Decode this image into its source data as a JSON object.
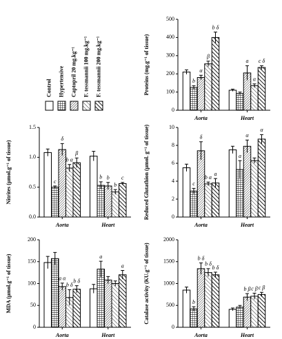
{
  "legend": [
    {
      "name": "Control",
      "pattern": "none"
    },
    {
      "name": "Hypertensive",
      "pattern": "grid"
    },
    {
      "name": "Captopril 20 mg.kg⁻¹",
      "pattern": "dense"
    },
    {
      "name": "F. tessmannii 100 mg.kg⁻¹",
      "pattern": "sparse"
    },
    {
      "name": "F. tessmannii 200 mg.kg⁻¹",
      "pattern": "thick"
    }
  ],
  "chart_data": [
    {
      "type": "bar",
      "y_label": "Proteins (mg.g⁻¹ of tissue)",
      "categories": [
        "Aorta",
        "Heart"
      ],
      "ylim": [
        0,
        500
      ],
      "yticks": [
        0,
        100,
        200,
        300,
        400,
        500
      ],
      "series": [
        {
          "values": [
            210,
            110
          ],
          "errors": [
            12,
            6
          ],
          "labels": [
            null,
            null
          ]
        },
        {
          "values": [
            125,
            92
          ],
          "errors": [
            10,
            8
          ],
          "labels": [
            "b",
            null
          ]
        },
        {
          "values": [
            180,
            205
          ],
          "errors": [
            12,
            40
          ],
          "labels": [
            "α",
            "a"
          ]
        },
        {
          "values": [
            255,
            135
          ],
          "errors": [
            15,
            10
          ],
          "labels": [
            "β",
            "α"
          ]
        },
        {
          "values": [
            400,
            235
          ],
          "errors": [
            30,
            10
          ],
          "labels": [
            "b δ",
            "c δ"
          ]
        }
      ]
    },
    {
      "type": "bar",
      "y_label": "Nitrites (µmol.g⁻¹ of tissue)",
      "categories": [
        "Aorta",
        "Heart"
      ],
      "ylim": [
        0,
        1.5
      ],
      "yticks": [
        {
          "value": 0,
          "label": "0.0"
        },
        0.5,
        {
          "value": 1,
          "label": "1.0"
        },
        1.5
      ],
      "series": [
        {
          "values": [
            1.08,
            1.02
          ],
          "errors": [
            0.06,
            0.08
          ],
          "labels": [
            null,
            null
          ]
        },
        {
          "values": [
            0.5,
            0.53
          ],
          "errors": [
            0.02,
            0.06
          ],
          "labels": [
            "c",
            "b"
          ]
        },
        {
          "values": [
            1.13,
            0.52
          ],
          "errors": [
            0.1,
            0.06
          ],
          "labels": [
            "δ",
            "b"
          ]
        },
        {
          "values": [
            0.82,
            0.42
          ],
          "errors": [
            0.06,
            0.04
          ],
          "labels": [
            "b α",
            "b"
          ]
        },
        {
          "values": [
            0.91,
            0.56
          ],
          "errors": [
            0.08,
            0.02
          ],
          "labels": [
            "β",
            "c"
          ]
        }
      ]
    },
    {
      "type": "bar",
      "y_label": "Reduced Glutathion (µmol. g⁻¹ of tissue)",
      "categories": [
        "Aorta",
        "Heart"
      ],
      "ylim": [
        0,
        10
      ],
      "yticks": [
        0,
        2,
        4,
        6,
        8,
        10
      ],
      "series": [
        {
          "values": [
            5.5,
            7.5
          ],
          "errors": [
            0.4,
            0.4
          ],
          "labels": [
            null,
            null
          ]
        },
        {
          "values": [
            2.9,
            5.3
          ],
          "errors": [
            0.3,
            1.0
          ],
          "labels": [
            "c",
            "a"
          ]
        },
        {
          "values": [
            7.4,
            7.9
          ],
          "errors": [
            1.0,
            0.7
          ],
          "labels": [
            "δ",
            "α"
          ]
        },
        {
          "values": [
            3.7,
            6.3
          ],
          "errors": [
            0.2,
            0.3
          ],
          "labels": [
            "b α",
            null
          ]
        },
        {
          "values": [
            3.8,
            8.7
          ],
          "errors": [
            0.5,
            0.5
          ],
          "labels": [
            "a",
            "α"
          ]
        }
      ]
    },
    {
      "type": "bar",
      "y_label": "MDA (µmol.g⁻¹ of tissue)",
      "categories": [
        "Aorta",
        "Heart"
      ],
      "ylim": [
        0,
        200
      ],
      "yticks": [
        0,
        50,
        100,
        150,
        200
      ],
      "series": [
        {
          "values": [
            148,
            88
          ],
          "errors": [
            14,
            10
          ],
          "labels": [
            null,
            null
          ]
        },
        {
          "values": [
            157,
            133
          ],
          "errors": [
            14,
            18
          ],
          "labels": [
            null,
            "a"
          ]
        },
        {
          "values": [
            93,
            108
          ],
          "errors": [
            8,
            8
          ],
          "labels": [
            "a α",
            null
          ]
        },
        {
          "values": [
            68,
            100
          ],
          "errors": [
            18,
            6
          ],
          "labels": [
            "b δ",
            null
          ]
        },
        {
          "values": [
            87,
            120
          ],
          "errors": [
            8,
            10
          ],
          "labels": [
            "b δ",
            "a"
          ]
        }
      ]
    },
    {
      "type": "bar",
      "y_label": "Catalase activity (KU.g⁻¹ of tissue)",
      "categories": [
        "Aorta",
        "Heart"
      ],
      "ylim": [
        0,
        2000
      ],
      "yticks": [
        0,
        500,
        1000,
        1500,
        2000
      ],
      "series": [
        {
          "values": [
            850,
            410
          ],
          "errors": [
            70,
            30
          ],
          "labels": [
            null,
            null
          ]
        },
        {
          "values": [
            420,
            460
          ],
          "errors": [
            50,
            40
          ],
          "labels": [
            "b",
            null
          ]
        },
        {
          "values": [
            1340,
            690
          ],
          "errors": [
            130,
            80
          ],
          "labels": [
            "b δ",
            "b β"
          ]
        },
        {
          "values": [
            1250,
            710
          ],
          "errors": [
            90,
            70
          ],
          "labels": [
            "b δ",
            "c β"
          ]
        },
        {
          "values": [
            1200,
            750
          ],
          "errors": [
            60,
            50
          ],
          "labels": [
            "b δ",
            "c β"
          ]
        }
      ]
    }
  ]
}
